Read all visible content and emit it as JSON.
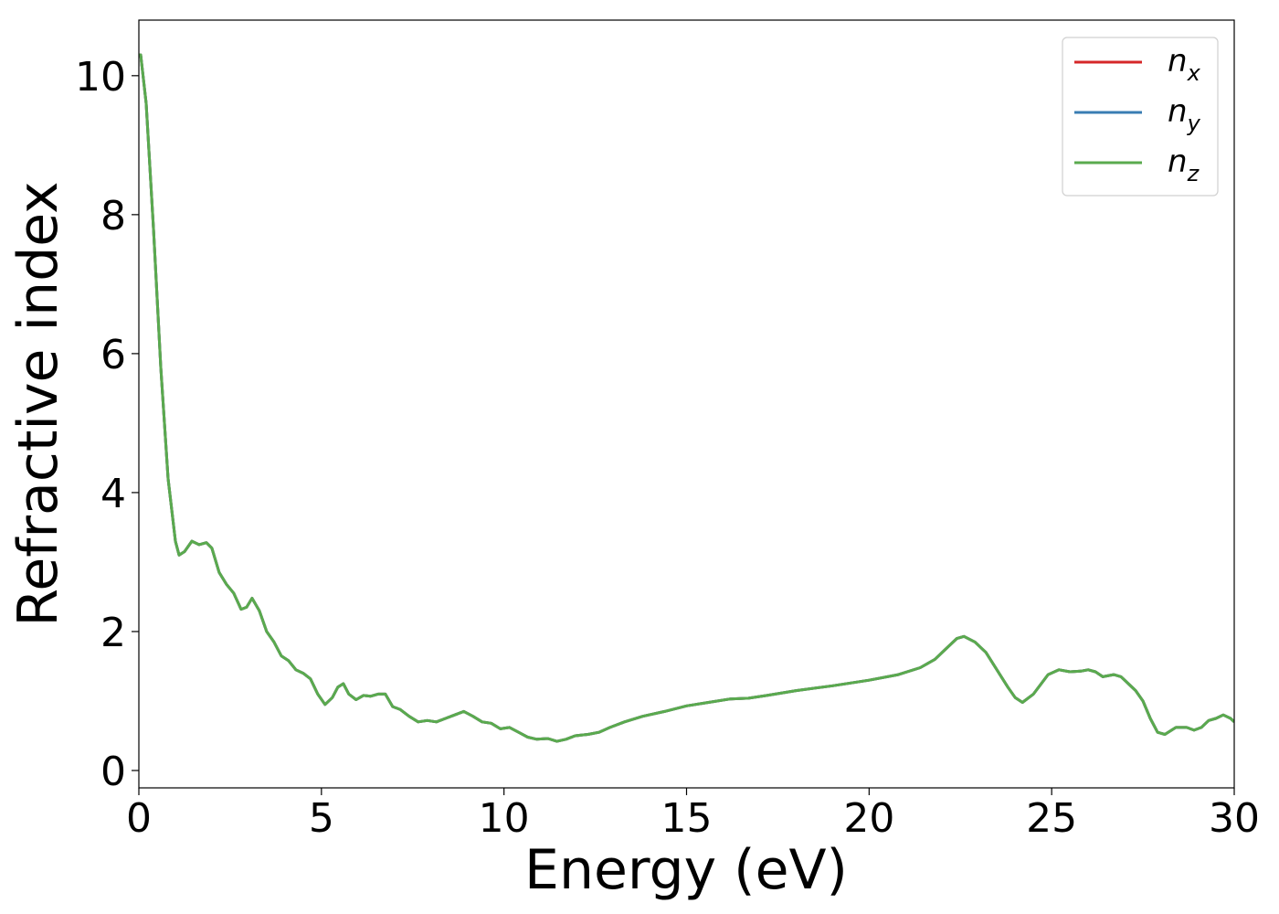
{
  "chart_data": {
    "type": "line",
    "xlabel": "Energy (eV)",
    "ylabel": "Refractive index",
    "xlim": [
      0,
      30
    ],
    "ylim": [
      -0.25,
      10.8
    ],
    "xticks": [
      "0",
      "5",
      "10",
      "15",
      "20",
      "25",
      "30"
    ],
    "yticks": [
      "0",
      "2",
      "4",
      "6",
      "8",
      "10"
    ],
    "grid": false,
    "legend_position": "top-right",
    "x": [
      0,
      0.05,
      0.2,
      0.4,
      0.6,
      0.8,
      1.0,
      1.1,
      1.25,
      1.45,
      1.65,
      1.85,
      2.0,
      2.2,
      2.4,
      2.6,
      2.8,
      2.95,
      3.1,
      3.3,
      3.5,
      3.7,
      3.9,
      4.1,
      4.3,
      4.5,
      4.7,
      4.9,
      5.1,
      5.3,
      5.45,
      5.6,
      5.75,
      5.95,
      6.15,
      6.35,
      6.55,
      6.75,
      6.95,
      7.15,
      7.4,
      7.65,
      7.9,
      8.15,
      8.4,
      8.65,
      8.9,
      9.15,
      9.4,
      9.65,
      9.9,
      10.15,
      10.4,
      10.65,
      10.9,
      11.2,
      11.45,
      11.7,
      11.95,
      12.3,
      12.6,
      12.9,
      13.3,
      13.8,
      14.4,
      15.0,
      15.6,
      16.2,
      16.7,
      17.2,
      18.0,
      19.0,
      20.0,
      20.8,
      21.4,
      21.8,
      22.1,
      22.4,
      22.6,
      22.9,
      23.2,
      23.5,
      23.8,
      24.0,
      24.2,
      24.5,
      24.9,
      25.2,
      25.5,
      25.8,
      26.0,
      26.2,
      26.4,
      26.7,
      26.9,
      27.1,
      27.3,
      27.5,
      27.7,
      27.9,
      28.1,
      28.4,
      28.7,
      28.9,
      29.1,
      29.3,
      29.5,
      29.7,
      29.9,
      30.0
    ],
    "series": [
      {
        "name": "n_x",
        "label_main": "n",
        "label_sub": "x",
        "color": "#d62728",
        "values": [
          10.3,
          10.3,
          9.6,
          7.8,
          5.8,
          4.2,
          3.3,
          3.1,
          3.15,
          3.3,
          3.25,
          3.28,
          3.2,
          2.85,
          2.68,
          2.55,
          2.32,
          2.35,
          2.48,
          2.3,
          2.0,
          1.85,
          1.65,
          1.58,
          1.45,
          1.4,
          1.32,
          1.1,
          0.95,
          1.05,
          1.2,
          1.25,
          1.1,
          1.02,
          1.08,
          1.07,
          1.1,
          1.1,
          0.92,
          0.88,
          0.78,
          0.7,
          0.72,
          0.7,
          0.75,
          0.8,
          0.85,
          0.78,
          0.7,
          0.68,
          0.6,
          0.62,
          0.55,
          0.48,
          0.45,
          0.46,
          0.42,
          0.45,
          0.5,
          0.52,
          0.55,
          0.62,
          0.7,
          0.78,
          0.85,
          0.93,
          0.98,
          1.03,
          1.04,
          1.08,
          1.15,
          1.22,
          1.3,
          1.38,
          1.48,
          1.6,
          1.75,
          1.9,
          1.93,
          1.85,
          1.7,
          1.45,
          1.2,
          1.05,
          0.98,
          1.1,
          1.38,
          1.45,
          1.42,
          1.43,
          1.45,
          1.42,
          1.35,
          1.38,
          1.35,
          1.25,
          1.15,
          1.0,
          0.75,
          0.55,
          0.52,
          0.62,
          0.62,
          0.58,
          0.62,
          0.72,
          0.75,
          0.8,
          0.75,
          0.7
        ]
      },
      {
        "name": "n_y",
        "label_main": "n",
        "label_sub": "y",
        "color": "#3a7db3",
        "values": [
          10.3,
          10.3,
          9.6,
          7.8,
          5.8,
          4.2,
          3.3,
          3.1,
          3.15,
          3.3,
          3.25,
          3.28,
          3.2,
          2.85,
          2.68,
          2.55,
          2.32,
          2.35,
          2.48,
          2.3,
          2.0,
          1.85,
          1.65,
          1.58,
          1.45,
          1.4,
          1.32,
          1.1,
          0.95,
          1.05,
          1.2,
          1.25,
          1.1,
          1.02,
          1.08,
          1.07,
          1.1,
          1.1,
          0.92,
          0.88,
          0.78,
          0.7,
          0.72,
          0.7,
          0.75,
          0.8,
          0.85,
          0.78,
          0.7,
          0.68,
          0.6,
          0.62,
          0.55,
          0.48,
          0.45,
          0.46,
          0.42,
          0.45,
          0.5,
          0.52,
          0.55,
          0.62,
          0.7,
          0.78,
          0.85,
          0.93,
          0.98,
          1.03,
          1.04,
          1.08,
          1.15,
          1.22,
          1.3,
          1.38,
          1.48,
          1.6,
          1.75,
          1.9,
          1.93,
          1.85,
          1.7,
          1.45,
          1.2,
          1.05,
          0.98,
          1.1,
          1.38,
          1.45,
          1.42,
          1.43,
          1.45,
          1.42,
          1.35,
          1.38,
          1.35,
          1.25,
          1.15,
          1.0,
          0.75,
          0.55,
          0.52,
          0.62,
          0.62,
          0.58,
          0.62,
          0.72,
          0.75,
          0.8,
          0.75,
          0.7
        ]
      },
      {
        "name": "n_z",
        "label_main": "n",
        "label_sub": "z",
        "color": "#5aaa4e",
        "values": [
          10.3,
          10.3,
          9.6,
          7.8,
          5.8,
          4.2,
          3.3,
          3.1,
          3.15,
          3.3,
          3.25,
          3.28,
          3.2,
          2.85,
          2.68,
          2.55,
          2.32,
          2.35,
          2.48,
          2.3,
          2.0,
          1.85,
          1.65,
          1.58,
          1.45,
          1.4,
          1.32,
          1.1,
          0.95,
          1.05,
          1.2,
          1.25,
          1.1,
          1.02,
          1.08,
          1.07,
          1.1,
          1.1,
          0.92,
          0.88,
          0.78,
          0.7,
          0.72,
          0.7,
          0.75,
          0.8,
          0.85,
          0.78,
          0.7,
          0.68,
          0.6,
          0.62,
          0.55,
          0.48,
          0.45,
          0.46,
          0.42,
          0.45,
          0.5,
          0.52,
          0.55,
          0.62,
          0.7,
          0.78,
          0.85,
          0.93,
          0.98,
          1.03,
          1.04,
          1.08,
          1.15,
          1.22,
          1.3,
          1.38,
          1.48,
          1.6,
          1.75,
          1.9,
          1.93,
          1.85,
          1.7,
          1.45,
          1.2,
          1.05,
          0.98,
          1.1,
          1.38,
          1.45,
          1.42,
          1.43,
          1.45,
          1.42,
          1.35,
          1.38,
          1.35,
          1.25,
          1.15,
          1.0,
          0.75,
          0.55,
          0.52,
          0.62,
          0.62,
          0.58,
          0.62,
          0.72,
          0.75,
          0.8,
          0.75,
          0.7
        ]
      }
    ]
  }
}
